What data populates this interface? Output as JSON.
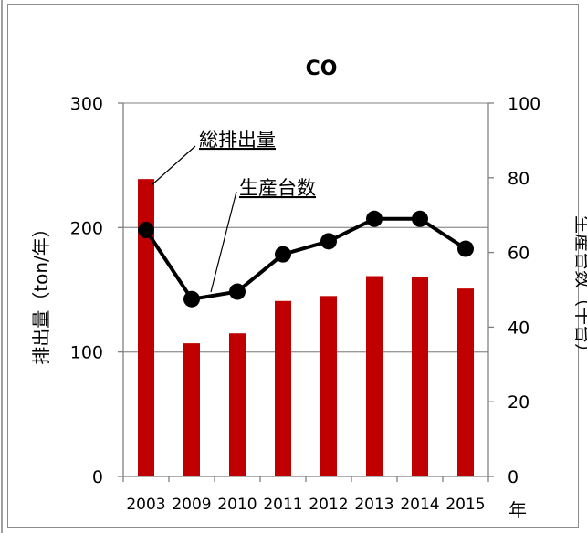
{
  "chart_data": {
    "type": "bar+line",
    "title": "CO",
    "categories": [
      "2003",
      "2009",
      "2010",
      "2011",
      "2012",
      "2013",
      "2014",
      "2015"
    ],
    "series": [
      {
        "name": "総排出量",
        "type": "bar",
        "axis": "left",
        "color": "#c00000",
        "values": [
          239,
          107,
          115,
          141,
          145,
          161,
          160,
          151
        ]
      },
      {
        "name": "生産台数",
        "type": "line",
        "axis": "right",
        "color": "#000000",
        "values": [
          66,
          47.5,
          49.5,
          59.5,
          63,
          69,
          69,
          61
        ]
      }
    ],
    "ylabel": "排出量（ton/年）",
    "ylabel_right": "生産台数（千台）",
    "xlabel": "年",
    "ylim": [
      0,
      300
    ],
    "ylim_right": [
      0,
      100
    ],
    "yticks": [
      0,
      100,
      200,
      300
    ],
    "yticks_right": [
      0,
      20,
      40,
      60,
      80,
      100
    ],
    "grid": true,
    "annotations": [
      "総排出量",
      "生産台数"
    ]
  }
}
